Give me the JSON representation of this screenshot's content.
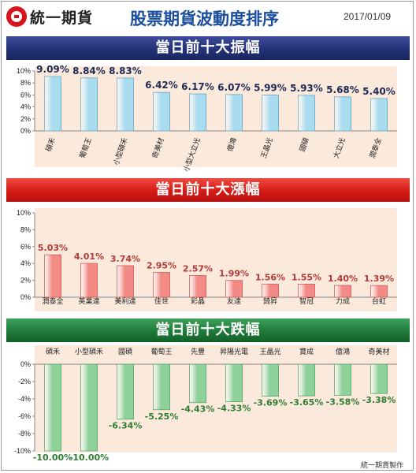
{
  "header": {
    "brand": "統一期貨",
    "title": "股票期貨波動度排序",
    "date": "2017/01/09"
  },
  "footer": {
    "credit": "統一期貨製作"
  },
  "colors": {
    "amplitude_bar": "#a9dcef",
    "rise_bar": "#f28a86",
    "fall_bar": "#8fd19b",
    "plot_bg": "#fbe9dc",
    "rise_label": "#b03a36",
    "fall_label": "#2e7d32"
  },
  "chart_data": [
    {
      "type": "bar",
      "title": "當日前十大振幅",
      "categories": [
        "碩禾",
        "葡萄王",
        "小型碩禾",
        "奇美材",
        "小型大立光",
        "億鴻",
        "王晶光",
        "國碩",
        "大立光",
        "潤泰全"
      ],
      "values": [
        9.09,
        8.84,
        8.83,
        6.42,
        6.17,
        6.07,
        5.99,
        5.93,
        5.68,
        5.4
      ],
      "value_labels": [
        "9.09%",
        "8.84%",
        "8.83%",
        "6.42%",
        "6.17%",
        "6.07%",
        "5.99%",
        "5.93%",
        "5.68%",
        "5.40%"
      ],
      "ylim": [
        0,
        10
      ],
      "yticks": [
        "10%",
        "8%",
        "6%",
        "4%",
        "2%",
        "0%"
      ],
      "grid": false
    },
    {
      "type": "bar",
      "title": "當日前十大漲幅",
      "categories": [
        "潤泰全",
        "英業達",
        "美利達",
        "佳世",
        "彩晶",
        "友達",
        "錡昇",
        "智冠",
        "力成",
        "台虹"
      ],
      "values": [
        5.03,
        4.01,
        3.74,
        2.95,
        2.57,
        1.99,
        1.56,
        1.55,
        1.4,
        1.39
      ],
      "value_labels": [
        "5.03%",
        "4.01%",
        "3.74%",
        "2.95%",
        "2.57%",
        "1.99%",
        "1.56%",
        "1.55%",
        "1.40%",
        "1.39%"
      ],
      "ylim": [
        0,
        10
      ],
      "yticks": [
        "10%",
        "8%",
        "6%",
        "4%",
        "2%",
        "0%"
      ],
      "grid": false
    },
    {
      "type": "bar",
      "title": "當日前十大跌幅",
      "categories": [
        "碩禾",
        "小型碩禾",
        "國碩",
        "葡萄王",
        "先豐",
        "昇陽光電",
        "王晶光",
        "寶成",
        "億鴻",
        "奇美材"
      ],
      "values": [
        -10.0,
        -10.0,
        -6.34,
        -5.25,
        -4.43,
        -4.33,
        -3.69,
        -3.65,
        -3.58,
        -3.38
      ],
      "value_labels": [
        "-10.00%",
        "-10.00%",
        "-6.34%",
        "-5.25%",
        "-4.43%",
        "-4.33%",
        "-3.69%",
        "-3.65%",
        "-3.58%",
        "-3.38%"
      ],
      "ylim": [
        -10,
        0
      ],
      "yticks": [
        "0%",
        "-2%",
        "-4%",
        "-6%",
        "-8%",
        "-10%"
      ],
      "grid": false
    }
  ]
}
